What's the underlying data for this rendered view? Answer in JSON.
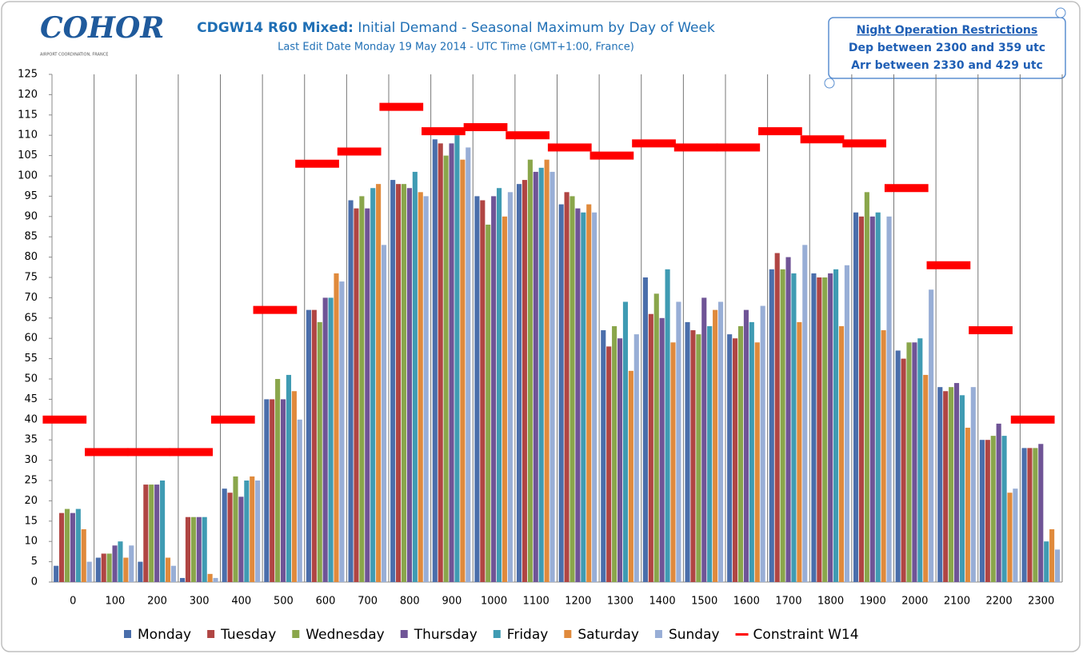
{
  "logo": {
    "text": "COHOR",
    "caption": "AIRPORT COORDINATION, FRANCE"
  },
  "annotation": {
    "title": "Night Operation Restrictions",
    "lines": [
      "Dep between 2300 and 359 utc",
      "Arr between 2330 and 429 utc"
    ]
  },
  "chart_data": {
    "type": "bar",
    "title_bold": "CDGW14 R60 Mixed:",
    "title": "Initial Demand - Seasonal Maximum by Day of Week",
    "subtitle": "Last Edit Date Monday 19 May 2014 - UTC Time (GMT+1:00, France)",
    "categories": [
      "0",
      "100",
      "200",
      "300",
      "400",
      "500",
      "600",
      "700",
      "800",
      "900",
      "1000",
      "1100",
      "1200",
      "1300",
      "1400",
      "1500",
      "1600",
      "1700",
      "1800",
      "1900",
      "2000",
      "2100",
      "2200",
      "2300"
    ],
    "series": [
      {
        "name": "Monday",
        "color": "#4a6eab",
        "values": [
          4,
          6,
          5,
          1,
          23,
          45,
          67,
          94,
          99,
          109,
          95,
          98,
          93,
          62,
          75,
          64,
          61,
          77,
          76,
          91,
          57,
          48,
          35,
          33
        ]
      },
      {
        "name": "Tuesday",
        "color": "#b04543",
        "values": [
          17,
          7,
          24,
          16,
          22,
          45,
          67,
          92,
          98,
          108,
          94,
          99,
          96,
          58,
          66,
          62,
          60,
          81,
          75,
          90,
          55,
          47,
          35,
          33
        ]
      },
      {
        "name": "Wednesday",
        "color": "#8aa64b",
        "values": [
          18,
          7,
          24,
          16,
          26,
          50,
          64,
          95,
          98,
          105,
          88,
          104,
          95,
          63,
          71,
          61,
          63,
          77,
          75,
          96,
          59,
          48,
          36,
          33
        ]
      },
      {
        "name": "Thursday",
        "color": "#6f5496",
        "values": [
          17,
          9,
          24,
          16,
          21,
          45,
          70,
          92,
          97,
          108,
          95,
          101,
          92,
          60,
          65,
          70,
          67,
          80,
          76,
          90,
          59,
          49,
          39,
          34
        ]
      },
      {
        "name": "Friday",
        "color": "#3f9bb3",
        "values": [
          18,
          10,
          25,
          16,
          25,
          51,
          70,
          97,
          101,
          110,
          97,
          102,
          91,
          69,
          77,
          63,
          64,
          76,
          77,
          91,
          60,
          46,
          36,
          10
        ]
      },
      {
        "name": "Saturday",
        "color": "#e08a3c",
        "values": [
          13,
          6,
          6,
          2,
          26,
          47,
          76,
          98,
          96,
          104,
          90,
          104,
          93,
          52,
          59,
          67,
          59,
          64,
          63,
          62,
          51,
          38,
          22,
          13
        ]
      },
      {
        "name": "Sunday",
        "color": "#98aed6",
        "values": [
          5,
          9,
          4,
          1,
          25,
          40,
          74,
          83,
          95,
          107,
          96,
          101,
          91,
          61,
          69,
          69,
          68,
          83,
          78,
          90,
          72,
          48,
          23,
          8
        ]
      },
      {
        "name": "Constraint W14",
        "color": "#ff0000",
        "type": "dash",
        "values": [
          40,
          32,
          32,
          32,
          40,
          67,
          103,
          106,
          117,
          111,
          112,
          110,
          107,
          105,
          108,
          107,
          107,
          111,
          109,
          108,
          97,
          78,
          62,
          40
        ]
      }
    ],
    "ylim": [
      0,
      125
    ],
    "yticks": [
      0,
      5,
      10,
      15,
      20,
      25,
      30,
      35,
      40,
      45,
      50,
      55,
      60,
      65,
      70,
      75,
      80,
      85,
      90,
      95,
      100,
      105,
      110,
      115,
      120,
      125
    ],
    "grid": false,
    "legend": "bottom"
  }
}
